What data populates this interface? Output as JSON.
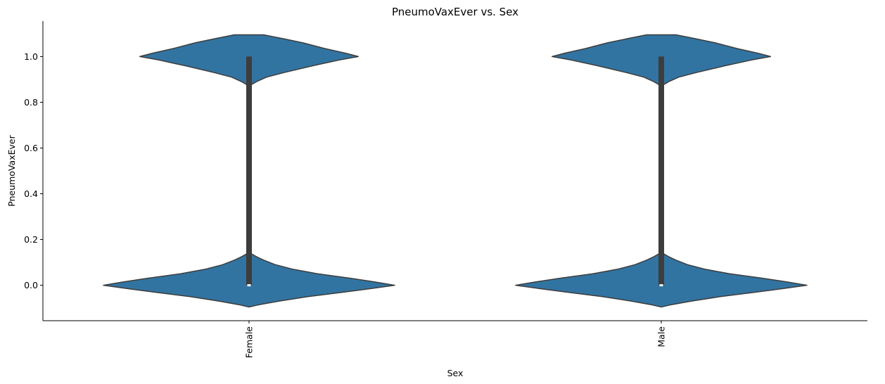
{
  "chart_data": {
    "type": "violin",
    "title": "PneumoVaxEver vs. Sex",
    "xlabel": "Sex",
    "ylabel": "PneumoVaxEver",
    "categories": [
      "Female",
      "Male"
    ],
    "ylim": [
      -0.155,
      1.155
    ],
    "yticks": [
      0.0,
      0.2,
      0.4,
      0.6,
      0.8,
      1.0
    ],
    "ytick_labels": [
      "0.0",
      "0.2",
      "0.4",
      "0.6",
      "0.8",
      "1.0"
    ],
    "grid": false,
    "violin_color": "#3274a1",
    "box_color": "#3d3d3d",
    "edge_color": "#3d3d3d",
    "series": [
      {
        "category": "Female",
        "min": 0.0,
        "q1": 0.0,
        "median": 0.0,
        "q3": 1.0,
        "max": 1.0,
        "density": [
          [
            -0.095,
            0.0
          ],
          [
            -0.085,
            0.07
          ],
          [
            -0.07,
            0.2
          ],
          [
            -0.05,
            0.4
          ],
          [
            -0.03,
            0.65
          ],
          [
            -0.015,
            0.83
          ],
          [
            0.0,
            1.0
          ],
          [
            0.015,
            0.86
          ],
          [
            0.03,
            0.7
          ],
          [
            0.05,
            0.47
          ],
          [
            0.07,
            0.3
          ],
          [
            0.09,
            0.18
          ],
          [
            0.11,
            0.1
          ],
          [
            0.125,
            0.05
          ],
          [
            0.14,
            0.01
          ],
          [
            0.16,
            0.005
          ],
          [
            0.5,
            0.005
          ],
          [
            0.86,
            0.005
          ],
          [
            0.875,
            0.01
          ],
          [
            0.89,
            0.05
          ],
          [
            0.91,
            0.12
          ],
          [
            0.93,
            0.24
          ],
          [
            0.96,
            0.44
          ],
          [
            0.985,
            0.62
          ],
          [
            1.0,
            0.75
          ],
          [
            1.015,
            0.66
          ],
          [
            1.035,
            0.52
          ],
          [
            1.06,
            0.37
          ],
          [
            1.08,
            0.22
          ],
          [
            1.095,
            0.1
          ]
        ]
      },
      {
        "category": "Male",
        "min": 0.0,
        "q1": 0.0,
        "median": 0.0,
        "q3": 1.0,
        "max": 1.0,
        "density": [
          [
            -0.095,
            0.0
          ],
          [
            -0.085,
            0.07
          ],
          [
            -0.07,
            0.2
          ],
          [
            -0.05,
            0.4
          ],
          [
            -0.03,
            0.65
          ],
          [
            -0.015,
            0.83
          ],
          [
            0.0,
            1.0
          ],
          [
            0.015,
            0.86
          ],
          [
            0.03,
            0.7
          ],
          [
            0.05,
            0.47
          ],
          [
            0.07,
            0.3
          ],
          [
            0.09,
            0.18
          ],
          [
            0.11,
            0.1
          ],
          [
            0.125,
            0.05
          ],
          [
            0.14,
            0.01
          ],
          [
            0.16,
            0.005
          ],
          [
            0.5,
            0.005
          ],
          [
            0.86,
            0.005
          ],
          [
            0.875,
            0.01
          ],
          [
            0.89,
            0.05
          ],
          [
            0.91,
            0.12
          ],
          [
            0.93,
            0.24
          ],
          [
            0.96,
            0.44
          ],
          [
            0.985,
            0.62
          ],
          [
            1.0,
            0.75
          ],
          [
            1.015,
            0.66
          ],
          [
            1.035,
            0.52
          ],
          [
            1.06,
            0.37
          ],
          [
            1.08,
            0.22
          ],
          [
            1.095,
            0.1
          ]
        ]
      }
    ]
  }
}
